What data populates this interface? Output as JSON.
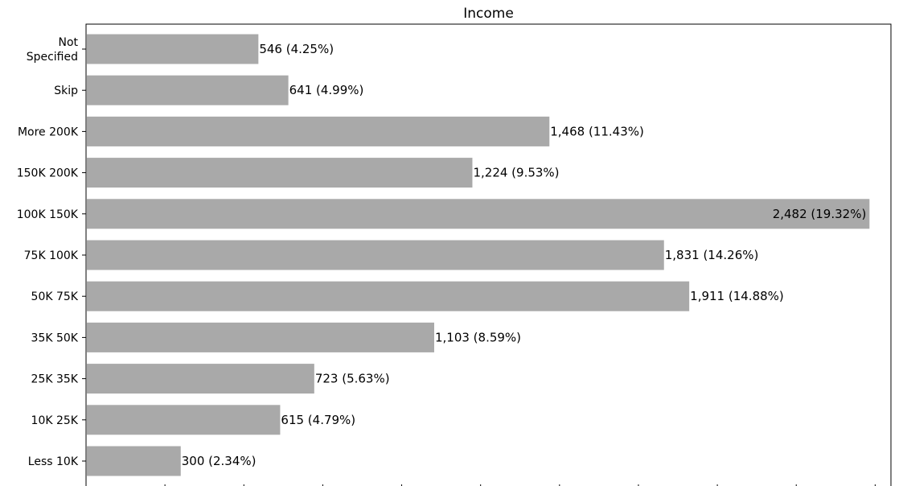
{
  "chart_data": {
    "type": "bar",
    "orientation": "horizontal",
    "title": "Income",
    "xlabel": "",
    "ylabel": "",
    "categories": [
      "Not Specified",
      "Skip",
      "More 200K",
      "150K 200K",
      "100K 150K",
      "75K 100K",
      "50K 75K",
      "35K 50K",
      "25K 35K",
      "10K 25K",
      "Less 10K"
    ],
    "values": [
      546,
      641,
      1468,
      1224,
      2482,
      1831,
      1911,
      1103,
      723,
      615,
      300
    ],
    "data_labels": [
      "546 (4.25%)",
      "641 (4.99%)",
      "1,468 (11.43%)",
      "1,224 (9.53%)",
      "2,482 (19.32%)",
      "1,831 (14.26%)",
      "1,911 (14.88%)",
      "1,103 (8.59%)",
      "723 (5.63%)",
      "615 (4.79%)",
      "300 (2.34%)"
    ],
    "xlim": [
      0,
      2550
    ],
    "bar_color": "#a9a9a9",
    "grid": false,
    "legend": "none"
  }
}
